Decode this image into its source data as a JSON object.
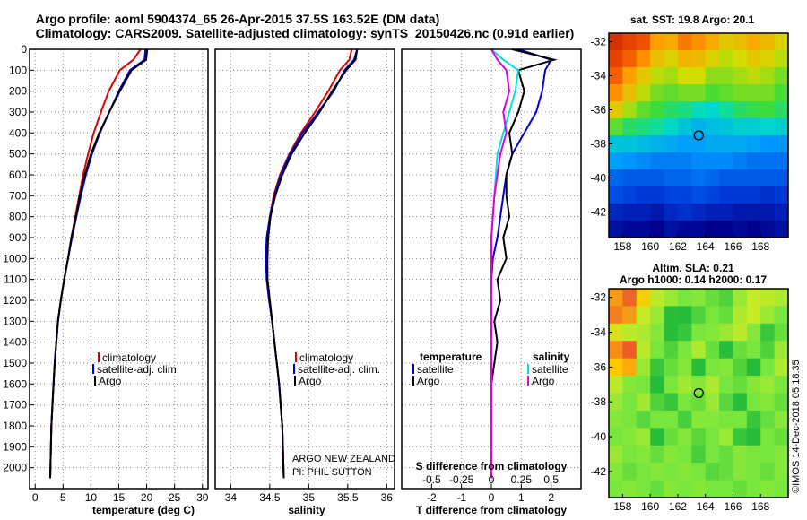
{
  "header": {
    "title_line1": "Argo profile: aoml 5904374_65 26-Apr-2015 37.5S 163.52E (DM data)",
    "title_line2": "Climatology: CARS2009. Satellite-adjusted climatology: synTS_20150426.nc (0.91d earlier)"
  },
  "credits": {
    "program": "ARGO NEW ZEALAND",
    "pi": "PI: PHIL SUTTON",
    "stamp": "©IMOS 14-Dec-2018 05:18:35"
  },
  "colors": {
    "climatology": "#e00000",
    "satellite": "#0000d0",
    "argo": "#000000",
    "sal_satellite": "#00e0e0",
    "sal_argo": "#e000e0"
  },
  "legend": {
    "climatology": "climatology",
    "satellite_adj": "satellite-adj. clim.",
    "argo": "Argo",
    "temperature": "temperature",
    "salinity": "salinity",
    "satellite": "satellite"
  },
  "chart_data": [
    {
      "type": "line",
      "xlabel": "temperature (deg C)",
      "ylabel": "",
      "xlim": [
        -1,
        31
      ],
      "ylim": [
        2100,
        0
      ],
      "xticks": [
        "0",
        "5",
        "10",
        "15",
        "20",
        "25",
        "30"
      ],
      "yticks": [
        "0",
        "100",
        "200",
        "300",
        "400",
        "500",
        "600",
        "700",
        "800",
        "900",
        "1000",
        "1100",
        "1200",
        "1300",
        "1400",
        "1500",
        "1600",
        "1700",
        "1800",
        "1900",
        "2000"
      ],
      "grid": true,
      "legend_position": "bottom-right",
      "series": [
        {
          "name": "climatology",
          "x": [
            18.9,
            17.6,
            15.2,
            13.2,
            11.8,
            10.5,
            9.5,
            8.6,
            7.9,
            7.2,
            6.5,
            5.9,
            5.2,
            4.6,
            4.1,
            3.8,
            3.5,
            3.3,
            3.1,
            2.9,
            2.7
          ],
          "depth": [
            0,
            50,
            100,
            200,
            300,
            400,
            500,
            600,
            700,
            800,
            900,
            1000,
            1100,
            1200,
            1300,
            1400,
            1500,
            1600,
            1700,
            1800,
            2050
          ]
        },
        {
          "name": "satellite-adj. clim.",
          "x": [
            19.8,
            19.6,
            17.0,
            15.0,
            13.3,
            11.6,
            10.2,
            9.1,
            8.2,
            7.4,
            6.6,
            5.9,
            5.2,
            4.6,
            4.1,
            3.8,
            3.5,
            3.3,
            3.1,
            2.9,
            2.7
          ],
          "depth": [
            0,
            50,
            100,
            200,
            300,
            400,
            500,
            600,
            700,
            800,
            900,
            1000,
            1100,
            1200,
            1300,
            1400,
            1500,
            1600,
            1700,
            1800,
            2050
          ]
        },
        {
          "name": "Argo",
          "x": [
            20.1,
            19.9,
            17.3,
            15.2,
            13.3,
            11.5,
            10.0,
            8.9,
            8.0,
            7.3,
            6.5,
            5.9,
            5.2,
            4.6,
            4.1,
            3.8,
            3.5,
            3.3,
            3.1,
            2.9,
            2.7
          ],
          "depth": [
            0,
            50,
            100,
            200,
            300,
            400,
            500,
            600,
            700,
            800,
            900,
            1000,
            1100,
            1200,
            1300,
            1400,
            1500,
            1600,
            1700,
            1800,
            2050
          ]
        }
      ]
    },
    {
      "type": "line",
      "xlabel": "salinity",
      "ylabel": "",
      "xlim": [
        33.8,
        36.1
      ],
      "ylim": [
        2100,
        0
      ],
      "xticks": [
        "34",
        "34.5",
        "35",
        "35.5",
        "36"
      ],
      "grid": true,
      "legend_position": "bottom-right",
      "series": [
        {
          "name": "climatology",
          "x": [
            35.55,
            35.52,
            35.4,
            35.25,
            35.08,
            34.9,
            34.75,
            34.63,
            34.55,
            34.5,
            34.47,
            34.46,
            34.47,
            34.5,
            34.53,
            34.56,
            34.59,
            34.62,
            34.64,
            34.66,
            34.68
          ],
          "depth": [
            0,
            50,
            100,
            200,
            300,
            400,
            500,
            600,
            700,
            800,
            900,
            1000,
            1100,
            1200,
            1300,
            1400,
            1500,
            1600,
            1700,
            1800,
            2050
          ]
        },
        {
          "name": "satellite-adj. clim.",
          "x": [
            35.62,
            35.58,
            35.46,
            35.32,
            35.12,
            34.92,
            34.76,
            34.64,
            34.56,
            34.5,
            34.46,
            34.45,
            34.46,
            34.49,
            34.53,
            34.56,
            34.59,
            34.62,
            34.64,
            34.66,
            34.68
          ],
          "depth": [
            0,
            50,
            100,
            200,
            300,
            400,
            500,
            600,
            700,
            800,
            900,
            1000,
            1100,
            1200,
            1300,
            1400,
            1500,
            1600,
            1700,
            1800,
            2050
          ]
        },
        {
          "name": "Argo",
          "x": [
            35.62,
            35.6,
            35.48,
            35.3,
            35.14,
            34.95,
            34.78,
            34.66,
            34.57,
            34.51,
            34.48,
            34.47,
            34.47,
            34.5,
            34.53,
            34.56,
            34.59,
            34.62,
            34.64,
            34.66,
            34.68
          ],
          "depth": [
            0,
            50,
            100,
            200,
            300,
            400,
            500,
            600,
            700,
            800,
            900,
            1000,
            1100,
            1200,
            1300,
            1400,
            1500,
            1600,
            1700,
            1800,
            2050
          ]
        }
      ]
    },
    {
      "type": "line",
      "xlabel": "T difference from climatology",
      "top_label": "S difference from climatology",
      "xlim": [
        -3,
        3
      ],
      "ylim": [
        2100,
        0
      ],
      "xticks": [
        "-2",
        "-1",
        "0",
        "1",
        "2"
      ],
      "top_xticks": [
        "-0.5",
        "-0.25",
        "0",
        "0.25",
        "0.5"
      ],
      "grid": true,
      "series": [
        {
          "name": "temperature satellite",
          "group": "temperature",
          "x": [
            0.9,
            2.0,
            1.8,
            1.7,
            1.5,
            1.1,
            0.7,
            0.5,
            0.4,
            0.3,
            0.2,
            0.05,
            0.0,
            0.0,
            0.0,
            0.0,
            0.0,
            0.0,
            0.0,
            0.0,
            0.0
          ],
          "depth": [
            0,
            50,
            100,
            200,
            300,
            400,
            500,
            600,
            700,
            800,
            900,
            1000,
            1100,
            1200,
            1300,
            1400,
            1500,
            1600,
            1700,
            1800,
            2050
          ]
        },
        {
          "name": "temperature Argo",
          "group": "temperature",
          "x": [
            0.7,
            2.1,
            0.9,
            1.1,
            0.9,
            0.6,
            0.7,
            0.5,
            0.5,
            0.6,
            0.4,
            0.5,
            0.2,
            0.3,
            0.1,
            0.2,
            0.1,
            0.0,
            0.0,
            0.0,
            0.0
          ],
          "depth": [
            0,
            50,
            100,
            200,
            300,
            400,
            500,
            600,
            700,
            800,
            900,
            1000,
            1100,
            1200,
            1300,
            1400,
            1500,
            1600,
            1700,
            1800,
            2050
          ]
        },
        {
          "name": "salinity satellite",
          "group": "salinity",
          "x": [
            0.0,
            0.4,
            0.9,
            0.8,
            0.6,
            0.4,
            0.2,
            0.15,
            0.1,
            0.05,
            0.0,
            0.0,
            0.0,
            0.0,
            0.0,
            0.0,
            0.0,
            0.0,
            0.0,
            0.0,
            0.0
          ],
          "depth": [
            0,
            50,
            100,
            200,
            300,
            400,
            500,
            600,
            700,
            800,
            900,
            1000,
            1100,
            1200,
            1300,
            1400,
            1500,
            1600,
            1700,
            1800,
            2050
          ]
        },
        {
          "name": "salinity Argo",
          "group": "salinity",
          "x": [
            0.0,
            0.2,
            0.5,
            0.6,
            0.4,
            0.5,
            0.3,
            0.2,
            0.1,
            0.05,
            0.0,
            0.0,
            0.0,
            0.0,
            0.0,
            0.0,
            0.0,
            0.0,
            0.0,
            0.0,
            0.0
          ],
          "depth": [
            0,
            50,
            100,
            200,
            300,
            400,
            500,
            600,
            700,
            800,
            900,
            1000,
            1100,
            1200,
            1300,
            1400,
            1500,
            1600,
            1700,
            1800,
            2050
          ]
        }
      ]
    },
    {
      "type": "heatmap",
      "title": "sat. SST: 19.8 Argo: 20.1",
      "xlim": [
        157,
        170
      ],
      "ylim": [
        -43.5,
        -31.5
      ],
      "xticks": [
        "158",
        "160",
        "162",
        "164",
        "166",
        "168"
      ],
      "yticks": [
        "-32",
        "-34",
        "-36",
        "-38",
        "-40",
        "-42"
      ],
      "marker": {
        "lon": 163.52,
        "lat": -37.5
      },
      "rows": [
        [
          0.95,
          0.92,
          0.9,
          0.8,
          0.78,
          0.85,
          0.82,
          0.78,
          0.72,
          0.74,
          0.78,
          0.75,
          0.7
        ],
        [
          0.92,
          0.88,
          0.82,
          0.74,
          0.7,
          0.76,
          0.75,
          0.7,
          0.66,
          0.68,
          0.72,
          0.7,
          0.66
        ],
        [
          0.88,
          0.8,
          0.72,
          0.66,
          0.64,
          0.68,
          0.68,
          0.62,
          0.62,
          0.64,
          0.66,
          0.64,
          0.6
        ],
        [
          0.82,
          0.74,
          0.66,
          0.6,
          0.58,
          0.6,
          0.6,
          0.56,
          0.58,
          0.6,
          0.6,
          0.6,
          0.56
        ],
        [
          0.72,
          0.64,
          0.58,
          0.55,
          0.52,
          0.5,
          0.46,
          0.44,
          0.48,
          0.52,
          0.54,
          0.55,
          0.52
        ],
        [
          0.58,
          0.52,
          0.5,
          0.48,
          0.44,
          0.4,
          0.36,
          0.38,
          0.4,
          0.42,
          0.42,
          0.44,
          0.42
        ],
        [
          0.4,
          0.4,
          0.38,
          0.36,
          0.34,
          0.32,
          0.32,
          0.34,
          0.34,
          0.34,
          0.32,
          0.3,
          0.3
        ],
        [
          0.32,
          0.3,
          0.28,
          0.26,
          0.26,
          0.26,
          0.28,
          0.28,
          0.28,
          0.26,
          0.24,
          0.24,
          0.24
        ],
        [
          0.22,
          0.2,
          0.2,
          0.2,
          0.22,
          0.22,
          0.24,
          0.22,
          0.2,
          0.2,
          0.2,
          0.2,
          0.2
        ],
        [
          0.18,
          0.16,
          0.14,
          0.14,
          0.16,
          0.16,
          0.18,
          0.16,
          0.14,
          0.14,
          0.14,
          0.12,
          0.14
        ],
        [
          0.1,
          0.08,
          0.08,
          0.06,
          0.1,
          0.12,
          0.1,
          0.08,
          0.08,
          0.06,
          0.06,
          0.06,
          0.08
        ],
        [
          0.04,
          0.02,
          0.02,
          0.0,
          0.04,
          0.02,
          0.02,
          0.0,
          0.0,
          0.02,
          0.0,
          0.02,
          0.04
        ]
      ]
    },
    {
      "type": "heatmap",
      "title": "Altim. SLA: 0.21",
      "subtitle": "Argo h1000: 0.14 h2000: 0.17",
      "xlim": [
        157,
        170
      ],
      "ylim": [
        -43.5,
        -31.5
      ],
      "xticks": [
        "158",
        "160",
        "162",
        "164",
        "166",
        "168"
      ],
      "yticks": [
        "-32",
        "-34",
        "-36",
        "-38",
        "-40",
        "-42"
      ],
      "marker": {
        "lon": 163.52,
        "lat": -37.5
      },
      "rows": [
        [
          0.78,
          0.86,
          0.7,
          0.6,
          0.55,
          0.5,
          0.52,
          0.48,
          0.45,
          0.55,
          0.62,
          0.6,
          0.58
        ],
        [
          0.82,
          0.78,
          0.62,
          0.55,
          0.4,
          0.38,
          0.45,
          0.5,
          0.48,
          0.58,
          0.62,
          0.55,
          0.5
        ],
        [
          0.65,
          0.6,
          0.58,
          0.52,
          0.4,
          0.42,
          0.5,
          0.52,
          0.55,
          0.6,
          0.52,
          0.42,
          0.48
        ],
        [
          0.8,
          0.88,
          0.6,
          0.5,
          0.45,
          0.5,
          0.58,
          0.48,
          0.4,
          0.48,
          0.5,
          0.45,
          0.55
        ],
        [
          0.72,
          0.76,
          0.55,
          0.42,
          0.48,
          0.52,
          0.4,
          0.5,
          0.52,
          0.45,
          0.38,
          0.5,
          0.58
        ],
        [
          0.6,
          0.52,
          0.5,
          0.38,
          0.5,
          0.56,
          0.52,
          0.58,
          0.5,
          0.48,
          0.52,
          0.55,
          0.5
        ],
        [
          0.55,
          0.5,
          0.56,
          0.45,
          0.42,
          0.5,
          0.48,
          0.55,
          0.46,
          0.4,
          0.5,
          0.52,
          0.48
        ],
        [
          0.52,
          0.5,
          0.46,
          0.5,
          0.5,
          0.44,
          0.52,
          0.52,
          0.5,
          0.5,
          0.42,
          0.48,
          0.52
        ],
        [
          0.5,
          0.52,
          0.55,
          0.4,
          0.48,
          0.52,
          0.46,
          0.5,
          0.55,
          0.42,
          0.38,
          0.5,
          0.48
        ],
        [
          0.55,
          0.5,
          0.52,
          0.48,
          0.52,
          0.5,
          0.44,
          0.5,
          0.48,
          0.52,
          0.5,
          0.5,
          0.52
        ],
        [
          0.52,
          0.48,
          0.5,
          0.52,
          0.5,
          0.52,
          0.5,
          0.46,
          0.48,
          0.52,
          0.5,
          0.48,
          0.52
        ],
        [
          0.5,
          0.52,
          0.5,
          0.48,
          0.52,
          0.5,
          0.52,
          0.5,
          0.5,
          0.48,
          0.5,
          0.52,
          0.5
        ]
      ]
    }
  ]
}
